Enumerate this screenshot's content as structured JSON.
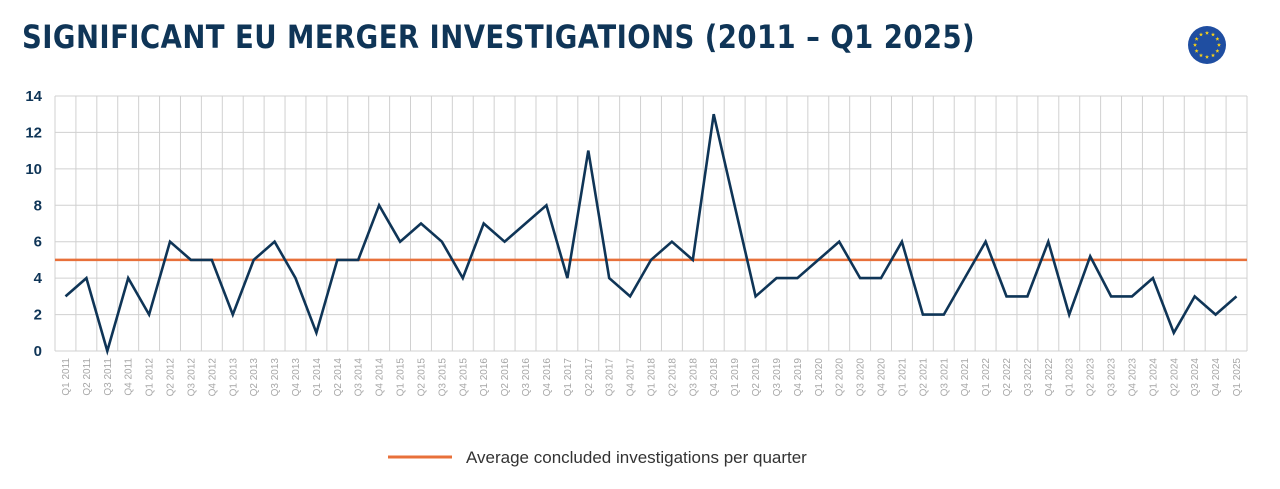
{
  "colors": {
    "title": "#0f3557",
    "series_line": "#0f3557",
    "average_line": "#e8703a",
    "grid": "#d0d0d0",
    "flag_blue": "#1f4ea1",
    "flag_star": "#f7d117"
  },
  "icons": {
    "flag": "eu-flag-icon"
  },
  "chart_data": {
    "type": "line",
    "title": "SIGNIFICANT EU MERGER INVESTIGATIONS (2011 – Q1 2025)",
    "xlabel": "",
    "ylabel": "",
    "ylim": [
      0,
      14
    ],
    "yticks": [
      0,
      2,
      4,
      6,
      8,
      10,
      12,
      14
    ],
    "grid": true,
    "legend_position": "bottom-center",
    "categories": [
      "Q1 2011",
      "Q2 2011",
      "Q3 2011",
      "Q4 2011",
      "Q1 2012",
      "Q2 2012",
      "Q3 2012",
      "Q4 2012",
      "Q1 2013",
      "Q2 2013",
      "Q3 2013",
      "Q4 2013",
      "Q1 2014",
      "Q2 2014",
      "Q3 2014",
      "Q4 2014",
      "Q1 2015",
      "Q2 2015",
      "Q3 2015",
      "Q4 2015",
      "Q1 2016",
      "Q2 2016",
      "Q3 2016",
      "Q4 2016",
      "Q1 2017",
      "Q2 2017",
      "Q3 2017",
      "Q4 2017",
      "Q1 2018",
      "Q2 2018",
      "Q3 2018",
      "Q4 2018",
      "Q1 2019",
      "Q2 2019",
      "Q3 2019",
      "Q4 2019",
      "Q1 2020",
      "Q2 2020",
      "Q3 2020",
      "Q4 2020",
      "Q1 2021",
      "Q2 2021",
      "Q3 2021",
      "Q4 2021",
      "Q1 2022",
      "Q2 2022",
      "Q3 2022",
      "Q4 2022",
      "Q1 2023",
      "Q2 2023",
      "Q3 2023",
      "Q4 2023",
      "Q1 2024",
      "Q2 2024",
      "Q3 2024",
      "Q4 2024",
      "Q1 2025"
    ],
    "series": [
      {
        "values": [
          3,
          4,
          0,
          4,
          2,
          6,
          5,
          5,
          2,
          5,
          6,
          4,
          1,
          5,
          5,
          8,
          6,
          7,
          6,
          4,
          7,
          6,
          7,
          8,
          4,
          11,
          4,
          3,
          5,
          6,
          5,
          13,
          8,
          3,
          4,
          4,
          5,
          6,
          4,
          4,
          6,
          2,
          2,
          4,
          6,
          3,
          3,
          6,
          2,
          5.2,
          3,
          3,
          4,
          1,
          3,
          2,
          3
        ]
      }
    ],
    "reference_lines": [
      {
        "name": "Average concluded investigations per quarter",
        "value": 5
      }
    ]
  }
}
